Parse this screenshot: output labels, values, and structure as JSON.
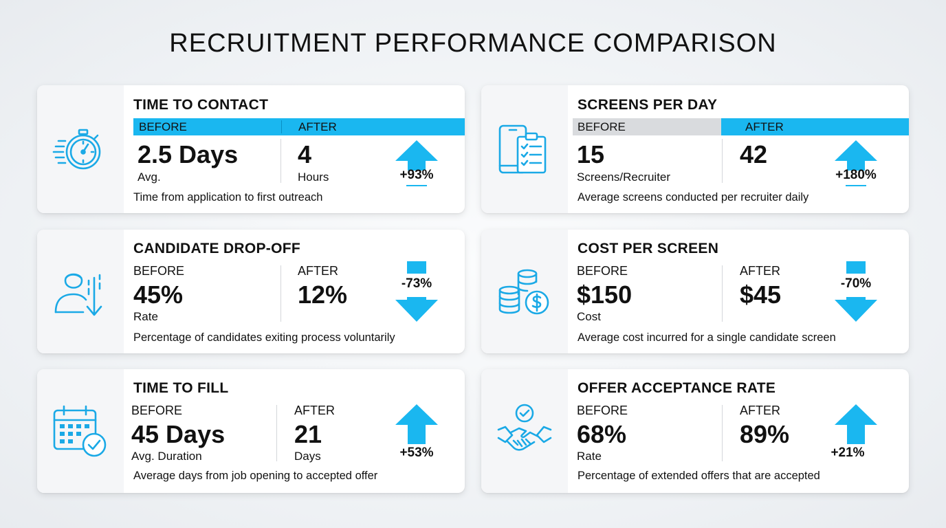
{
  "page": {
    "title": "RECRUITMENT PERFORMANCE COMPARISON"
  },
  "colors": {
    "accent": "#1ab7f0",
    "icon": "#1aa9e6",
    "label_gray": "#d9dbde",
    "text": "#111111"
  },
  "cards": {
    "time_to_contact": {
      "icon": "stopwatch-icon",
      "title": "TIME TO CONTACT",
      "before_label": "BEFORE",
      "after_label": "AFTER",
      "before_value": "2.5 Days",
      "before_sub": "Avg.",
      "after_value": "4",
      "after_sub": "Hours",
      "change": "+93%",
      "direction": "up",
      "description": "Time from application to first outreach"
    },
    "screens_per_day": {
      "icon": "phone-clipboard-icon",
      "title": "SCREENS PER DAY",
      "before_label": "BEFORE",
      "after_label": "AFTER",
      "before_value": "15",
      "before_sub": "Screens/Recruiter",
      "after_value": "42",
      "after_sub": "",
      "change": "+180%",
      "direction": "up",
      "description": "Average screens conducted per recruiter daily"
    },
    "candidate_drop_off": {
      "icon": "person-down-arrow-icon",
      "title": "CANDIDATE DROP-OFF",
      "before_label": "BEFORE",
      "after_label": "AFTER",
      "before_value": "45%",
      "before_sub": "Rate",
      "after_value": "12%",
      "after_sub": "",
      "change": "-73%",
      "direction": "down",
      "description": "Percentage of candidates exiting process voluntarily"
    },
    "cost_per_screen": {
      "icon": "coins-dollar-icon",
      "title": "COST PER SCREEN",
      "before_label": "BEFORE",
      "after_label": "AFTER",
      "before_value": "$150",
      "before_sub": "Cost",
      "after_value": "$45",
      "after_sub": "",
      "change": "-70%",
      "direction": "down",
      "description": "Average cost incurred for a single candidate screen"
    },
    "time_to_fill": {
      "icon": "calendar-check-icon",
      "title": "TIME TO FILL",
      "before_label": "BEFORE",
      "after_label": "AFTER",
      "before_value": "45 Days",
      "before_sub": "Avg. Duration",
      "after_value": "21",
      "after_sub": "Days",
      "change": "+53%",
      "direction": "up",
      "description": "Average days from job opening to accepted offer"
    },
    "offer_acceptance_rate": {
      "icon": "handshake-check-icon",
      "title": "OFFER ACCEPTANCE RATE",
      "before_label": "BEFORE",
      "after_label": "AFTER",
      "before_value": "68%",
      "before_sub": "Rate",
      "after_value": "89%",
      "after_sub": "",
      "change": "+21%",
      "direction": "up",
      "description": "Percentage of extended offers that are accepted"
    }
  }
}
